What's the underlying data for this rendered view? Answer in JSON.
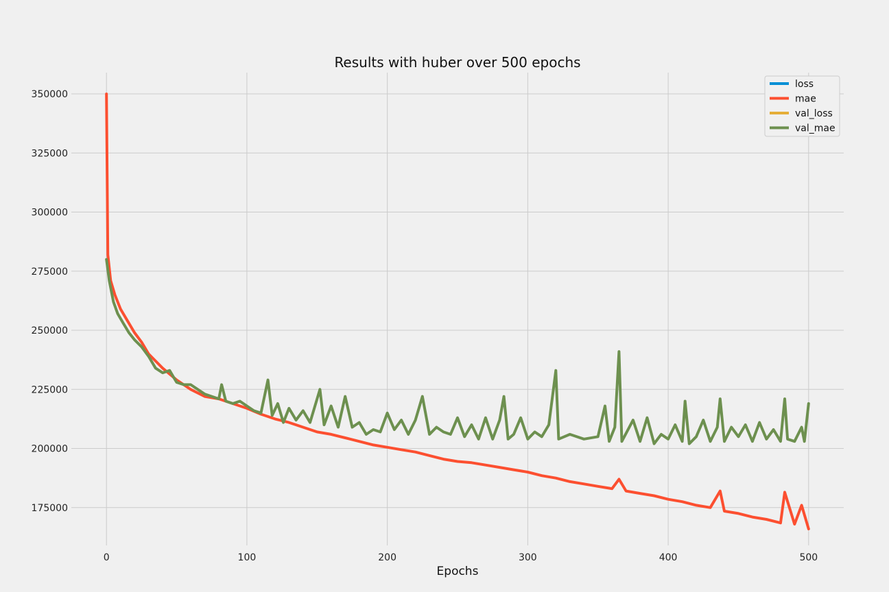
{
  "chart_data": {
    "type": "line",
    "title": "Results with huber over 500 epochs",
    "xlabel": "Epochs",
    "ylabel": "",
    "xlim": [
      -25,
      525
    ],
    "ylim": [
      159000,
      359000
    ],
    "xticks": [
      0,
      100,
      200,
      300,
      400,
      500
    ],
    "yticks": [
      175000,
      200000,
      225000,
      250000,
      275000,
      300000,
      325000,
      350000
    ],
    "grid": true,
    "legend": "top-right",
    "series": [
      {
        "name": "loss",
        "color": "#008fd5",
        "points": []
      },
      {
        "name": "mae",
        "color": "#fc4f30",
        "points": [
          [
            0,
            350000
          ],
          [
            1,
            282000
          ],
          [
            3,
            271000
          ],
          [
            6,
            265000
          ],
          [
            10,
            259000
          ],
          [
            15,
            254000
          ],
          [
            20,
            249000
          ],
          [
            25,
            245000
          ],
          [
            30,
            240000
          ],
          [
            35,
            237000
          ],
          [
            40,
            234000
          ],
          [
            50,
            229000
          ],
          [
            60,
            225000
          ],
          [
            70,
            222000
          ],
          [
            80,
            221000
          ],
          [
            90,
            219000
          ],
          [
            100,
            217000
          ],
          [
            110,
            214500
          ],
          [
            120,
            212500
          ],
          [
            130,
            211000
          ],
          [
            140,
            209000
          ],
          [
            150,
            207000
          ],
          [
            160,
            206000
          ],
          [
            170,
            204500
          ],
          [
            180,
            203000
          ],
          [
            190,
            201500
          ],
          [
            200,
            200500
          ],
          [
            210,
            199500
          ],
          [
            220,
            198500
          ],
          [
            230,
            197000
          ],
          [
            240,
            195500
          ],
          [
            250,
            194500
          ],
          [
            260,
            194000
          ],
          [
            270,
            193000
          ],
          [
            280,
            192000
          ],
          [
            290,
            191000
          ],
          [
            300,
            190000
          ],
          [
            310,
            188500
          ],
          [
            320,
            187500
          ],
          [
            330,
            186000
          ],
          [
            340,
            185000
          ],
          [
            350,
            184000
          ],
          [
            360,
            183000
          ],
          [
            365,
            187000
          ],
          [
            370,
            182000
          ],
          [
            380,
            181000
          ],
          [
            390,
            180000
          ],
          [
            400,
            178500
          ],
          [
            410,
            177500
          ],
          [
            420,
            176000
          ],
          [
            430,
            175000
          ],
          [
            437,
            182000
          ],
          [
            440,
            173500
          ],
          [
            450,
            172500
          ],
          [
            460,
            171000
          ],
          [
            470,
            170000
          ],
          [
            480,
            168500
          ],
          [
            483,
            181500
          ],
          [
            490,
            168000
          ],
          [
            495,
            176000
          ],
          [
            500,
            166000
          ]
        ]
      },
      {
        "name": "val_loss",
        "color": "#e5ae38",
        "points": []
      },
      {
        "name": "val_mae",
        "color": "#6d904f",
        "points": [
          [
            0,
            280000
          ],
          [
            2,
            271000
          ],
          [
            5,
            262000
          ],
          [
            8,
            257000
          ],
          [
            12,
            253000
          ],
          [
            16,
            249000
          ],
          [
            20,
            246000
          ],
          [
            25,
            243000
          ],
          [
            30,
            239000
          ],
          [
            35,
            234000
          ],
          [
            40,
            232000
          ],
          [
            45,
            233000
          ],
          [
            50,
            228000
          ],
          [
            55,
            227000
          ],
          [
            60,
            227000
          ],
          [
            65,
            225000
          ],
          [
            70,
            223000
          ],
          [
            75,
            222000
          ],
          [
            80,
            221000
          ],
          [
            82,
            227000
          ],
          [
            85,
            220000
          ],
          [
            90,
            219000
          ],
          [
            95,
            220000
          ],
          [
            100,
            218000
          ],
          [
            105,
            216000
          ],
          [
            110,
            215000
          ],
          [
            115,
            229000
          ],
          [
            118,
            214000
          ],
          [
            122,
            219000
          ],
          [
            126,
            211000
          ],
          [
            130,
            217000
          ],
          [
            135,
            212000
          ],
          [
            140,
            216000
          ],
          [
            145,
            211000
          ],
          [
            152,
            225000
          ],
          [
            155,
            210000
          ],
          [
            160,
            218000
          ],
          [
            165,
            209000
          ],
          [
            170,
            222000
          ],
          [
            175,
            209000
          ],
          [
            180,
            211000
          ],
          [
            185,
            206000
          ],
          [
            190,
            208000
          ],
          [
            195,
            207000
          ],
          [
            200,
            215000
          ],
          [
            205,
            208000
          ],
          [
            210,
            212000
          ],
          [
            215,
            206000
          ],
          [
            220,
            212000
          ],
          [
            225,
            222000
          ],
          [
            230,
            206000
          ],
          [
            235,
            209000
          ],
          [
            240,
            207000
          ],
          [
            245,
            206000
          ],
          [
            250,
            213000
          ],
          [
            255,
            205000
          ],
          [
            260,
            210000
          ],
          [
            265,
            204000
          ],
          [
            270,
            213000
          ],
          [
            275,
            204000
          ],
          [
            280,
            212000
          ],
          [
            283,
            222000
          ],
          [
            286,
            204000
          ],
          [
            290,
            206000
          ],
          [
            295,
            213000
          ],
          [
            300,
            204000
          ],
          [
            305,
            207000
          ],
          [
            310,
            205000
          ],
          [
            315,
            210000
          ],
          [
            320,
            233000
          ],
          [
            322,
            204000
          ],
          [
            330,
            206000
          ],
          [
            340,
            204000
          ],
          [
            350,
            205000
          ],
          [
            355,
            218000
          ],
          [
            358,
            203000
          ],
          [
            362,
            209000
          ],
          [
            365,
            241000
          ],
          [
            367,
            203000
          ],
          [
            375,
            212000
          ],
          [
            380,
            203000
          ],
          [
            385,
            213000
          ],
          [
            390,
            202000
          ],
          [
            395,
            206000
          ],
          [
            400,
            204000
          ],
          [
            405,
            210000
          ],
          [
            410,
            203000
          ],
          [
            412,
            220000
          ],
          [
            415,
            202000
          ],
          [
            420,
            205000
          ],
          [
            425,
            212000
          ],
          [
            430,
            203000
          ],
          [
            435,
            209000
          ],
          [
            437,
            221000
          ],
          [
            440,
            203000
          ],
          [
            445,
            209000
          ],
          [
            450,
            205000
          ],
          [
            455,
            210000
          ],
          [
            460,
            203000
          ],
          [
            465,
            211000
          ],
          [
            470,
            204000
          ],
          [
            475,
            208000
          ],
          [
            480,
            203000
          ],
          [
            483,
            221000
          ],
          [
            485,
            204000
          ],
          [
            490,
            203000
          ],
          [
            495,
            209000
          ],
          [
            497,
            203000
          ],
          [
            500,
            219000
          ]
        ]
      }
    ]
  }
}
